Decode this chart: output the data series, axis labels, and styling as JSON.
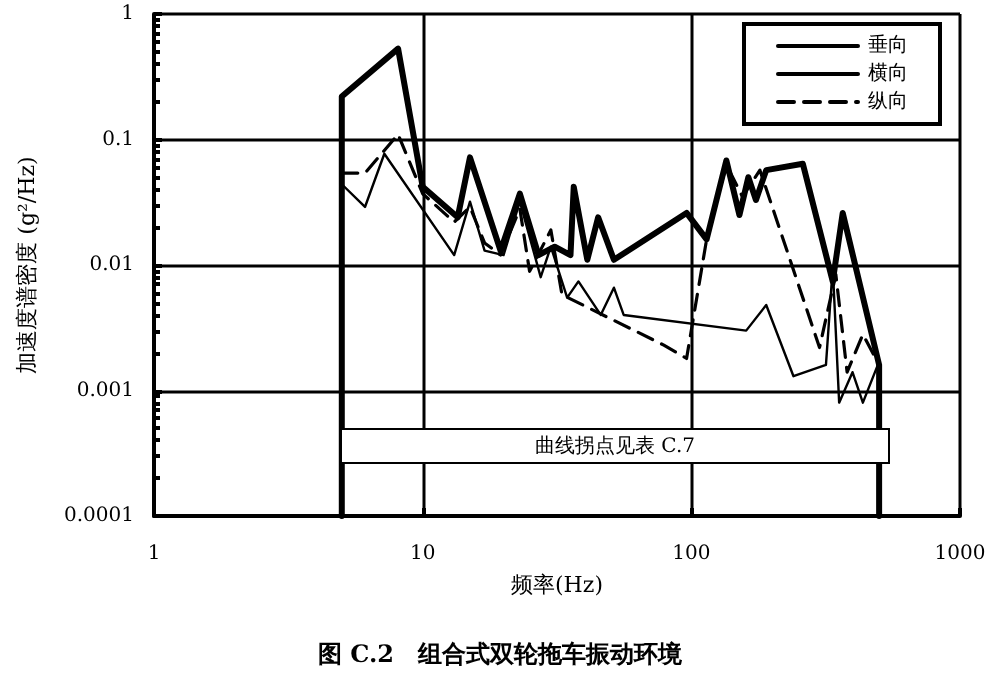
{
  "chart_data": {
    "type": "line",
    "title": "图 C.2　组合式双轮拖车振动环境",
    "xlabel": "频率(Hz)",
    "ylabel": "加速度谱密度 (g²/Hz)",
    "annotations": [
      "曲线拐点见表 C.7"
    ],
    "log": "xy",
    "xlim": [
      1,
      1000
    ],
    "ylim": [
      0.0001,
      1
    ],
    "xticks": [
      1,
      10,
      100,
      1000
    ],
    "yticks": [
      0.0001,
      0.001,
      0.01,
      0.1,
      1
    ],
    "grid": true,
    "legend": "top right",
    "marker": "none",
    "series": [
      {
        "name": "垂向",
        "color": "#000000",
        "line_style": "solid",
        "x": [
          5,
          5,
          8.1,
          10,
          13.5,
          15,
          19.5,
          23,
          27,
          31,
          35.5,
          36.5,
          41,
          45,
          51.5,
          96,
          114,
          135,
          151,
          163,
          174,
          190,
          260,
          336,
          366,
          500,
          500
        ],
        "values": [
          0.0001,
          0.22,
          0.53,
          0.042,
          0.024,
          0.072,
          0.013,
          0.037,
          0.012,
          0.014,
          0.012,
          0.042,
          0.011,
          0.024,
          0.011,
          0.026,
          0.016,
          0.068,
          0.025,
          0.05,
          0.033,
          0.057,
          0.064,
          0.0074,
          0.026,
          0.0016,
          0.0001
        ]
      },
      {
        "name": "横向",
        "color": "#000000",
        "line_style": "solid",
        "x": [
          5,
          6.1,
          7.2,
          13.1,
          15,
          17,
          20,
          23,
          27.5,
          30,
          34.5,
          38,
          46,
          51.5,
          56,
          160,
          190,
          240,
          317,
          336,
          355,
          398,
          435,
          500
        ],
        "values": [
          0.044,
          0.029,
          0.077,
          0.012,
          0.032,
          0.013,
          0.012,
          0.032,
          0.008,
          0.014,
          0.0055,
          0.0074,
          0.004,
          0.0066,
          0.004,
          0.003,
          0.0048,
          0.0013,
          0.0016,
          0.0096,
          0.0008,
          0.0014,
          0.0008,
          0.0017
        ]
      },
      {
        "name": "纵向",
        "color": "#000000",
        "line_style": "dashed",
        "x": [
          5,
          6.1,
          8.1,
          10,
          13.1,
          15,
          17,
          19.5,
          23,
          25,
          30,
          33,
          79,
          96,
          114,
          135,
          155,
          180,
          300,
          345,
          380,
          435,
          500
        ],
        "values": [
          0.054,
          0.054,
          0.11,
          0.037,
          0.022,
          0.029,
          0.015,
          0.012,
          0.028,
          0.0089,
          0.019,
          0.0058,
          0.0023,
          0.0018,
          0.016,
          0.063,
          0.035,
          0.057,
          0.0022,
          0.0084,
          0.0014,
          0.0028,
          0.0016
        ]
      }
    ]
  }
}
